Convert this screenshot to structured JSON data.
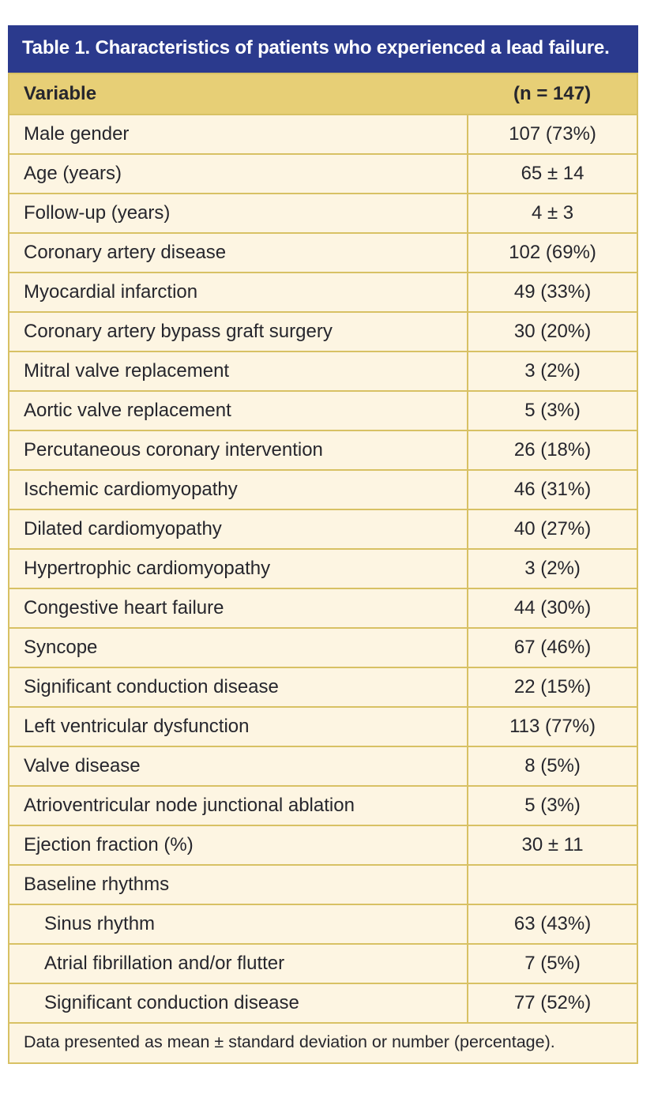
{
  "figure": {
    "title": "Table 1. Characteristics of patients who experienced a lead failure.",
    "columns": [
      "Variable",
      "(n = 147)"
    ],
    "rows": [
      {
        "label": "Male gender",
        "value": "107 (73%)",
        "indent": false
      },
      {
        "label": "Age (years)",
        "value": "65 ± 14",
        "indent": false
      },
      {
        "label": "Follow-up (years)",
        "value": "4 ± 3",
        "indent": false
      },
      {
        "label": "Coronary artery disease",
        "value": "102 (69%)",
        "indent": false
      },
      {
        "label": "Myocardial infarction",
        "value": "49 (33%)",
        "indent": false
      },
      {
        "label": "Coronary artery bypass graft surgery",
        "value": "30 (20%)",
        "indent": false
      },
      {
        "label": "Mitral valve replacement",
        "value": "3 (2%)",
        "indent": false
      },
      {
        "label": "Aortic valve replacement",
        "value": "5 (3%)",
        "indent": false
      },
      {
        "label": "Percutaneous coronary intervention",
        "value": "26 (18%)",
        "indent": false
      },
      {
        "label": "Ischemic cardiomyopathy",
        "value": "46 (31%)",
        "indent": false
      },
      {
        "label": "Dilated cardiomyopathy",
        "value": "40 (27%)",
        "indent": false
      },
      {
        "label": "Hypertrophic cardiomyopathy",
        "value": "3 (2%)",
        "indent": false
      },
      {
        "label": "Congestive heart failure",
        "value": "44 (30%)",
        "indent": false
      },
      {
        "label": "Syncope",
        "value": "67 (46%)",
        "indent": false
      },
      {
        "label": "Significant conduction disease",
        "value": "22 (15%)",
        "indent": false
      },
      {
        "label": "Left ventricular dysfunction",
        "value": "113 (77%)",
        "indent": false
      },
      {
        "label": "Valve disease",
        "value": "8 (5%)",
        "indent": false
      },
      {
        "label": "Atrioventricular node junctional ablation",
        "value": "5 (3%)",
        "indent": false
      },
      {
        "label": "Ejection fraction (%)",
        "value": "30 ± 11",
        "indent": false
      },
      {
        "label": "Baseline rhythms",
        "value": "",
        "indent": false
      },
      {
        "label": "Sinus rhythm",
        "value": "63 (43%)",
        "indent": true
      },
      {
        "label": "Atrial fibrillation and/or flutter",
        "value": "7 (5%)",
        "indent": true
      },
      {
        "label": "Significant conduction disease",
        "value": "77 (52%)",
        "indent": true
      }
    ],
    "footnote": "Data presented as mean ± standard deviation or number (percentage).",
    "colors": {
      "title_bar_blue": "#2b3a8d",
      "title_text": "#ffffff",
      "subheader_gold": "#e7cf76",
      "border_gold": "#d8c164",
      "row_cream": "#fdf5e2",
      "text_dark": "#26262d"
    }
  }
}
